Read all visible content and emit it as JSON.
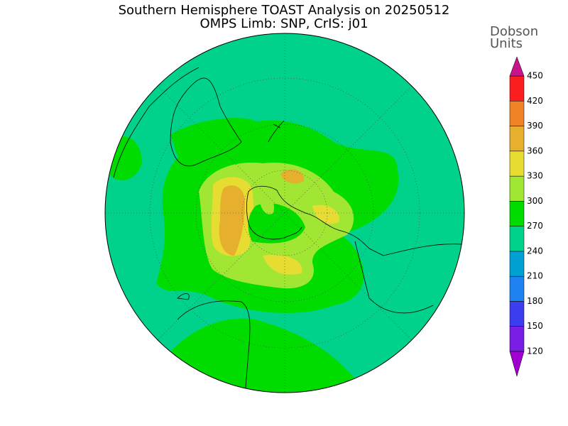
{
  "title": "Southern Hemisphere TOAST Analysis on 20250512",
  "subtitle": "OMPS Limb: SNP, CrIS: j01",
  "colorbar": {
    "title_lines": [
      "Dobson",
      "Units"
    ],
    "ticks": [
      120,
      150,
      180,
      210,
      240,
      270,
      300,
      330,
      360,
      390,
      420,
      450
    ],
    "colors": [
      "#a000d0",
      "#7a1ee6",
      "#3c3cf0",
      "#1e82f0",
      "#00a0d2",
      "#00d28c",
      "#00dc00",
      "#a0e632",
      "#e6dc32",
      "#e6af2d",
      "#f08228",
      "#fa1e1e",
      "#c8148c"
    ]
  }
}
